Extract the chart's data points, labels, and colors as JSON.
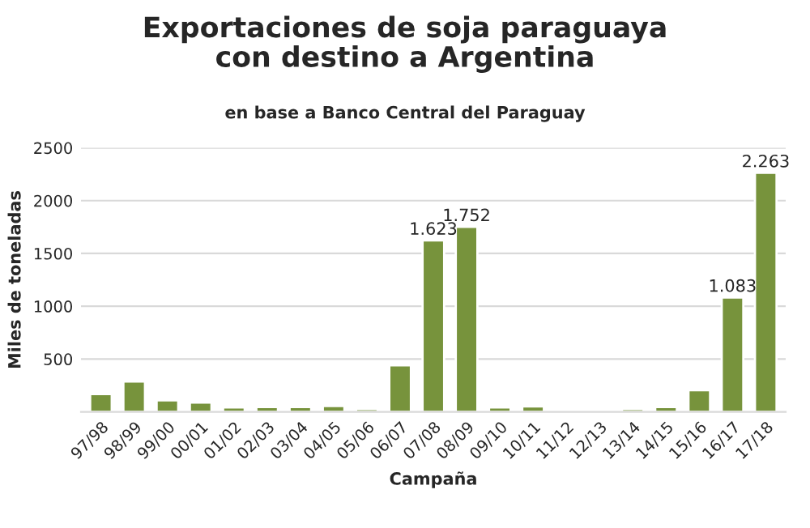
{
  "chart_data": {
    "type": "bar",
    "title": "Exportaciones de soja paraguaya\ncon destino a Argentina",
    "subtitle": "en base a Banco Central del Paraguay",
    "xlabel": "Campaña",
    "ylabel": "Miles de toneladas",
    "categories": [
      "97/98",
      "98/99",
      "99/00",
      "00/01",
      "01/02",
      "02/03",
      "03/04",
      "04/05",
      "05/06",
      "06/07",
      "07/08",
      "08/09",
      "09/10",
      "10/11",
      "11/12",
      "12/13",
      "13/14",
      "14/15",
      "15/16",
      "16/17",
      "17/18"
    ],
    "values": [
      169,
      287,
      108,
      87,
      41,
      46,
      46,
      56,
      26,
      441,
      1623,
      1752,
      41,
      51,
      10,
      10,
      26,
      46,
      205,
      1083,
      2263
    ],
    "value_labels": [
      null,
      null,
      null,
      null,
      null,
      null,
      null,
      null,
      null,
      null,
      "1.623",
      "1.752",
      null,
      null,
      null,
      null,
      null,
      null,
      null,
      "1.083",
      "2.263"
    ],
    "color": "#77933c",
    "ylim": [
      0,
      2500
    ],
    "yticks": [
      500,
      1000,
      1500,
      2000,
      2500
    ],
    "grid": "y"
  }
}
